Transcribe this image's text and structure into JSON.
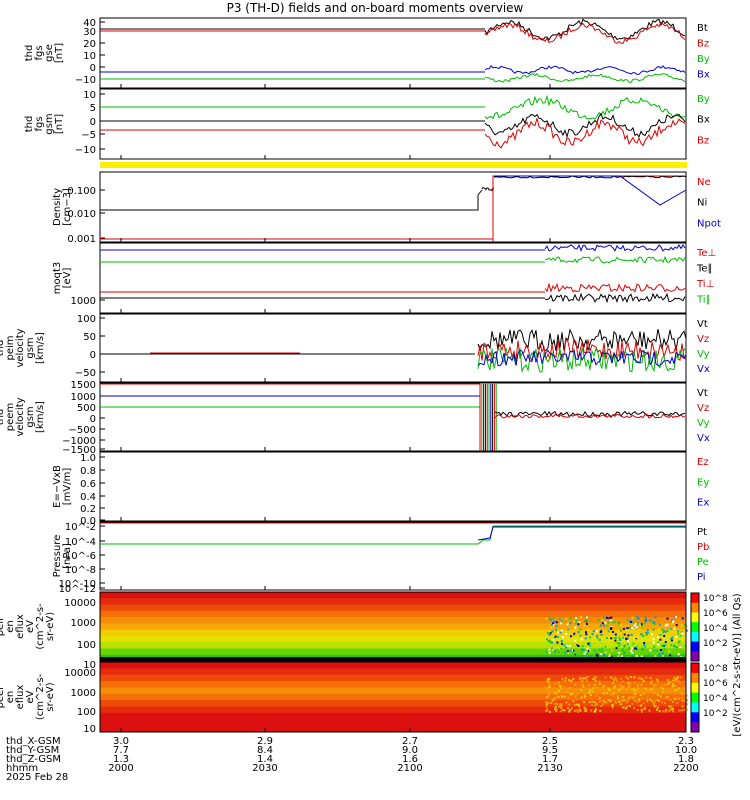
{
  "title": "P3 (TH-D) fields and on-board moments overview",
  "colorbar_label": "[eV/(cm^2-s-str-eV)] (All Qs)",
  "colorbar_ticks": [
    "10^8",
    "10^6",
    "10^4",
    "10^2"
  ],
  "chart_data": [
    {
      "type": "line",
      "ylabel": [
        "thd",
        "fgs",
        "gse",
        "[nT]"
      ],
      "yticks": [
        "40",
        "30",
        "20",
        "10",
        "0",
        "−10"
      ],
      "series": [
        {
          "name": "Bt",
          "color": "#000000"
        },
        {
          "name": "Bz",
          "color": "#dd0000"
        },
        {
          "name": "By",
          "color": "#00bb00"
        },
        {
          "name": "Bx",
          "color": "#0000cc"
        }
      ]
    },
    {
      "type": "line",
      "ylabel": [
        "thd",
        "fgs",
        "gsm",
        "[nT]"
      ],
      "yticks": [
        "10",
        "5",
        "0",
        "−5",
        "−10"
      ],
      "series": [
        {
          "name": "By",
          "color": "#00bb00"
        },
        {
          "name": "Bx",
          "color": "#000000"
        },
        {
          "name": "Bz",
          "color": "#dd0000"
        }
      ]
    },
    {
      "type": "line",
      "ylabel": [
        "Density",
        "[cm−3]"
      ],
      "yticks": [
        "0.100",
        "0.010",
        "0.001"
      ],
      "yscale": "log",
      "series": [
        {
          "name": "Ne",
          "color": "#dd0000"
        },
        {
          "name": "Ni",
          "color": "#000000"
        },
        {
          "name": "Npot",
          "color": "#0000cc"
        }
      ]
    },
    {
      "type": "line",
      "ylabel": [
        "moqt3",
        "[eV]"
      ],
      "yticks": [
        "1000"
      ],
      "yscale": "log",
      "series": [
        {
          "name": "Te⊥",
          "color": "#dd0000"
        },
        {
          "name": "Te∥",
          "color": "#000000"
        },
        {
          "name": "Ti⊥",
          "color": "#dd0000"
        },
        {
          "name": "Ti∥",
          "color": "#00bb00"
        }
      ]
    },
    {
      "type": "line",
      "ylabel": [
        "thd",
        "peim",
        "velocity",
        "gsm",
        "[km/s]"
      ],
      "yticks": [
        "100",
        "50",
        "0",
        "−50"
      ],
      "series": [
        {
          "name": "Vt",
          "color": "#000000"
        },
        {
          "name": "Vz",
          "color": "#dd0000"
        },
        {
          "name": "Vy",
          "color": "#00bb00"
        },
        {
          "name": "Vx",
          "color": "#0000cc"
        }
      ]
    },
    {
      "type": "line",
      "ylabel": [
        "thd",
        "peem",
        "velocity",
        "gsm",
        "[km/s]"
      ],
      "yticks": [
        "1500",
        "1000",
        "500",
        "0",
        "−500",
        "−1000",
        "−1500"
      ],
      "series": [
        {
          "name": "Vt",
          "color": "#000000"
        },
        {
          "name": "Vz",
          "color": "#dd0000"
        },
        {
          "name": "Vy",
          "color": "#00bb00"
        },
        {
          "name": "Vx",
          "color": "#0000cc"
        }
      ]
    },
    {
      "type": "line",
      "ylabel": [
        "E=−VxB",
        "[mV/m]"
      ],
      "yticks": [
        "1.0",
        "0.8",
        "0.6",
        "0.4",
        "0.2",
        "0.0"
      ],
      "series": [
        {
          "name": "Ez",
          "color": "#dd0000"
        },
        {
          "name": "Ey",
          "color": "#00bb00"
        },
        {
          "name": "Ex",
          "color": "#0000cc"
        }
      ]
    },
    {
      "type": "line",
      "ylabel": [
        "Pressure",
        "[nPa]"
      ],
      "yticks": [
        "10^-2",
        "10^-4",
        "10^-6",
        "10^-8",
        "10^-10",
        "10^-12"
      ],
      "yscale": "log",
      "series": [
        {
          "name": "Pt",
          "color": "#000000"
        },
        {
          "name": "Pb",
          "color": "#dd0000"
        },
        {
          "name": "Pe",
          "color": "#00bb00"
        },
        {
          "name": "Pi",
          "color": "#0000cc"
        }
      ]
    },
    {
      "type": "heatmap",
      "ylabel": [
        "thd",
        "peir",
        "en",
        "eflux",
        "eV",
        "(cm^2-s-",
        "sr-eV)"
      ],
      "yticks": [
        "10000",
        "1000",
        "100",
        "10"
      ]
    },
    {
      "type": "heatmap",
      "ylabel": [
        "thd",
        "peer",
        "en",
        "eflux",
        "eV",
        "(cm^2-s-",
        "sr-eV)"
      ],
      "yticks": [
        "10000",
        "1000",
        "100",
        "10"
      ]
    }
  ],
  "footer": {
    "rows": [
      {
        "label": "thd_X-GSM",
        "values": [
          "3.0",
          "2.9",
          "2.7",
          "2.5",
          "2.3"
        ]
      },
      {
        "label": "thd_Y-GSM",
        "values": [
          "7.7",
          "8.4",
          "9.0",
          "9.5",
          "10.0"
        ]
      },
      {
        "label": "thd_Z-GSM",
        "values": [
          "1.3",
          "1.4",
          "1.6",
          "1.7",
          "1.8"
        ]
      },
      {
        "label": "hhmm",
        "values": [
          "2000",
          "2030",
          "2100",
          "2130",
          "2200"
        ]
      }
    ],
    "date": "2025 Feb 28"
  }
}
